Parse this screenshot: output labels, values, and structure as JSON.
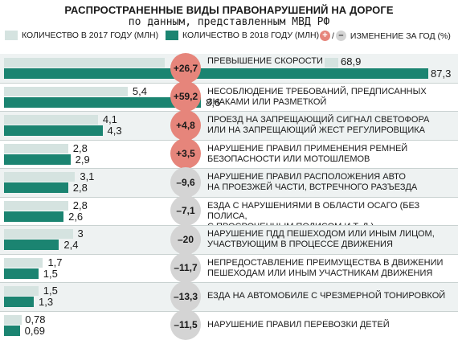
{
  "title": "РАСПРОСТРАНЕННЫЕ ВИДЫ ПРАВОНАРУШЕНИЙ НА ДОРОГЕ",
  "subtitle": "по данным, представленным МВД РФ",
  "legend": {
    "y2017": "КОЛИЧЕСТВО В 2017 ГОДУ (МЛН)",
    "y2018": "КОЛИЧЕСТВО В 2018 ГОДУ (МЛН)",
    "plus": "+",
    "slash": "/",
    "minus": "–",
    "change": "ИЗМЕНЕНИЕ ЗА ГОД (%)"
  },
  "colors": {
    "y2017": "#d5e3e0",
    "y2018": "#1b8471",
    "increase": "#e6857b",
    "decrease": "#d4d4d4",
    "band": "#eef2f2"
  },
  "chart_data": {
    "type": "bar",
    "title": "РАСПРОСТРАНЕННЫЕ ВИДЫ ПРАВОНАРУШЕНИЙ НА ДОРОГЕ",
    "subtitle": "по данным, представленным МВД РФ",
    "orientation": "horizontal",
    "units": "млн",
    "categories": [
      "ПРЕВЫШЕНИЕ СКОРОСТИ",
      "НЕСОБЛЮДЕНИЕ ТРЕБОВАНИЙ, ПРЕДПИСАННЫХ ЗНАКАМИ ИЛИ РАЗМЕТКОЙ",
      "ПРОЕЗД НА ЗАПРЕЩАЮЩИЙ СИГНАЛ СВЕТОФОРА ИЛИ НА ЗАПРЕЩАЮЩИЙ ЖЕСТ РЕГУЛИРОВЩИКА",
      "НАРУШЕНИЕ ПРАВИЛ ПРИМЕНЕНИЯ РЕМНЕЙ БЕЗОПАСНОСТИ ИЛИ МОТОШЛЕМОВ",
      "НАРУШЕНИЕ ПРАВИЛ РАСПОЛОЖЕНИЯ АВТО НА ПРОЕЗЖЕЙ ЧАСТИ, ВСТРЕЧНОГО РАЗЪЕЗДА",
      "ЕЗДА С НАРУШЕНИЯМИ В ОБЛАСТИ ОСАГО (БЕЗ ПОЛИСА, С ПРОСРОЧЕННЫМ ПОЛИСОМ И Т. Д.)",
      "НАРУШЕНИЕ ПДД ПЕШЕХОДОМ ИЛИ ИНЫМ ЛИЦОМ, УЧАСТВУЮЩИМ В ПРОЦЕССЕ ДВИЖЕНИЯ",
      "НЕПРЕДОСТАВЛЕНИЕ ПРЕИМУЩЕСТВА В ДВИЖЕНИИ ПЕШЕХОДАМ ИЛИ ИНЫМ УЧАСТНИКАМ ДВИЖЕНИЯ",
      "ЕЗДА НА АВТОМОБИЛЕ С ЧРЕЗМЕРНОЙ ТОНИРОВКОЙ",
      "НАРУШЕНИЕ ПРАВИЛ ПЕРЕВОЗКИ ДЕТЕЙ"
    ],
    "label_lines": [
      [
        "ПРЕВЫШЕНИЕ СКОРОСТИ"
      ],
      [
        "НЕСОБЛЮДЕНИЕ ТРЕБОВАНИЙ, ПРЕДПИСАННЫХ",
        "ЗНАКАМИ ИЛИ РАЗМЕТКОЙ"
      ],
      [
        "ПРОЕЗД НА ЗАПРЕЩАЮЩИЙ СИГНАЛ СВЕТОФОРА",
        "ИЛИ НА ЗАПРЕЩАЮЩИЙ ЖЕСТ РЕГУЛИРОВЩИКА"
      ],
      [
        "НАРУШЕНИЕ ПРАВИЛ ПРИМЕНЕНИЯ РЕМНЕЙ",
        "БЕЗОПАСНОСТИ ИЛИ МОТОШЛЕМОВ"
      ],
      [
        "НАРУШЕНИЕ ПРАВИЛ РАСПОЛОЖЕНИЯ АВТО",
        "НА ПРОЕЗЖЕЙ ЧАСТИ, ВСТРЕЧНОГО РАЗЪЕЗДА"
      ],
      [
        "ЕЗДА С НАРУШЕНИЯМИ В ОБЛАСТИ ОСАГО (БЕЗ ПОЛИСА,",
        "С ПРОСРОЧЕННЫМ ПОЛИСОМ И Т. Д.)"
      ],
      [
        "НАРУШЕНИЕ ПДД ПЕШЕХОДОМ ИЛИ ИНЫМ ЛИЦОМ,",
        "УЧАСТВУЮЩИМ В ПРОЦЕССЕ ДВИЖЕНИЯ"
      ],
      [
        "НЕПРЕДОСТАВЛЕНИЕ ПРЕИМУЩЕСТВА В ДВИЖЕНИИ",
        "ПЕШЕХОДАМ ИЛИ ИНЫМ УЧАСТНИКАМ ДВИЖЕНИЯ"
      ],
      [
        "ЕЗДА НА АВТОМОБИЛЕ С ЧРЕЗМЕРНОЙ ТОНИРОВКОЙ"
      ],
      [
        "НАРУШЕНИЕ ПРАВИЛ ПЕРЕВОЗКИ ДЕТЕЙ"
      ]
    ],
    "series": [
      {
        "name": "КОЛИЧЕСТВО В 2017 ГОДУ (МЛН)",
        "values": [
          68.9,
          5.4,
          4.1,
          2.8,
          3.1,
          2.8,
          3,
          1.7,
          1.5,
          0.78
        ]
      },
      {
        "name": "КОЛИЧЕСТВО В 2018 ГОДУ (МЛН)",
        "values": [
          87.3,
          8.6,
          4.3,
          2.9,
          2.8,
          2.6,
          2.4,
          1.5,
          1.3,
          0.69
        ]
      }
    ],
    "value_labels_2017": [
      "68,9",
      "5,4",
      "4,1",
      "2,8",
      "3,1",
      "2,8",
      "3",
      "1,7",
      "1,5",
      "0,78"
    ],
    "value_labels_2018": [
      "87,3",
      "8,6",
      "4,3",
      "2,9",
      "2,8",
      "2,6",
      "2,4",
      "1,5",
      "1,3",
      "0,69"
    ],
    "change_pct": [
      26.7,
      59.2,
      4.8,
      3.5,
      -9.6,
      -7.1,
      -20,
      -11.7,
      -13.3,
      -11.5
    ],
    "change_labels": [
      "+26,7",
      "+59,2",
      "+4,8",
      "+3,5",
      "–9,6",
      "–7,1",
      "–20",
      "–11,7",
      "–13,3",
      "–11,5"
    ]
  }
}
